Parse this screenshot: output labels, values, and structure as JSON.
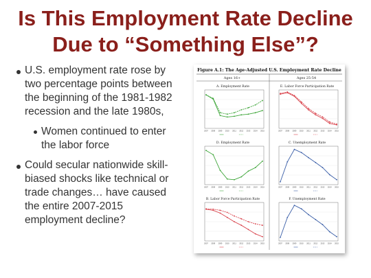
{
  "slide": {
    "title_line1": "Is This Employment Rate Decline",
    "title_line2": "Due to “Something Else”?",
    "bullets": [
      {
        "level": 1,
        "lines": [
          "U.S. employment rate rose by",
          "two percentage points between",
          "the beginning of the 1981-1982",
          "recession and the late 1980s,"
        ]
      },
      {
        "level": 2,
        "lines": [
          "Women continued to enter",
          "the labor force"
        ]
      },
      {
        "level": 1,
        "lines": [
          "Could secular nationwide skill-",
          "biased shocks like technical or",
          "trade changes… have caused",
          "the entire 2007-2015",
          "employment decline?"
        ]
      }
    ]
  },
  "figure": {
    "title": "Figure A.1: The Age-Adjusted U.S. Employment Rate Decline",
    "col_headers": [
      "Ages 16+",
      "Ages 25-54"
    ],
    "colors": {
      "green": "#3fa63a",
      "red": "#d9424b",
      "blue": "#3b5fa8"
    },
    "chart_data": [
      {
        "type": "line",
        "title": "A. Employment Rate",
        "color": "#3fa63a",
        "x": [
          2007,
          2008,
          2009,
          2010,
          2011,
          2012,
          2013,
          2014,
          2015
        ],
        "series": [
          {
            "values": [
              0.9,
              0.78,
              0.32,
              0.28,
              0.3,
              0.34,
              0.36,
              0.4,
              0.46
            ]
          },
          {
            "values": [
              0.9,
              0.8,
              0.4,
              0.36,
              0.4,
              0.48,
              0.54,
              0.62,
              0.74
            ]
          }
        ]
      },
      {
        "type": "line",
        "title": "D. Employment Rate",
        "color": "#3fa63a",
        "x": [
          2007,
          2008,
          2009,
          2010,
          2011,
          2012,
          2013,
          2014,
          2015
        ],
        "series": [
          {
            "values": [
              0.92,
              0.8,
              0.36,
              0.12,
              0.1,
              0.18,
              0.34,
              0.44,
              0.62
            ]
          }
        ]
      },
      {
        "type": "line",
        "title": "B. Labor Force Participation Rate",
        "color": "#d9424b",
        "x": [
          2007,
          2008,
          2009,
          2010,
          2011,
          2012,
          2013,
          2014,
          2015
        ],
        "series": [
          {
            "values": [
              0.85,
              0.82,
              0.74,
              0.62,
              0.5,
              0.4,
              0.28,
              0.16,
              0.08
            ]
          },
          {
            "values": [
              0.86,
              0.85,
              0.82,
              0.76,
              0.66,
              0.58,
              0.5,
              0.44,
              0.4
            ]
          }
        ]
      },
      {
        "type": "line",
        "title": "E. Labor Force Participation Rate",
        "color": "#d9424b",
        "x": [
          2007,
          2008,
          2009,
          2010,
          2011,
          2012,
          2013,
          2014,
          2015
        ],
        "series": [
          {
            "values": [
              0.92,
              0.96,
              0.86,
              0.66,
              0.48,
              0.34,
              0.24,
              0.1,
              0.06
            ]
          },
          {
            "values": [
              0.94,
              0.98,
              0.88,
              0.7,
              0.52,
              0.38,
              0.28,
              0.14,
              0.08
            ]
          }
        ]
      },
      {
        "type": "line",
        "title": "C. Unemployment Rate",
        "color": "#3b5fa8",
        "x": [
          2007,
          2008,
          2009,
          2010,
          2011,
          2012,
          2013,
          2014,
          2015
        ],
        "series": [
          {
            "values": [
              0.04,
              0.6,
              0.95,
              0.86,
              0.72,
              0.58,
              0.44,
              0.24,
              0.1
            ]
          }
        ]
      },
      {
        "type": "line",
        "title": "F. Unemployment Rate",
        "color": "#3b5fa8",
        "x": [
          2007,
          2008,
          2009,
          2010,
          2011,
          2012,
          2013,
          2014,
          2015
        ],
        "series": [
          {
            "values": [
              0.06,
              0.62,
              0.96,
              0.86,
              0.7,
              0.56,
              0.42,
              0.22,
              0.08
            ]
          }
        ]
      }
    ]
  }
}
